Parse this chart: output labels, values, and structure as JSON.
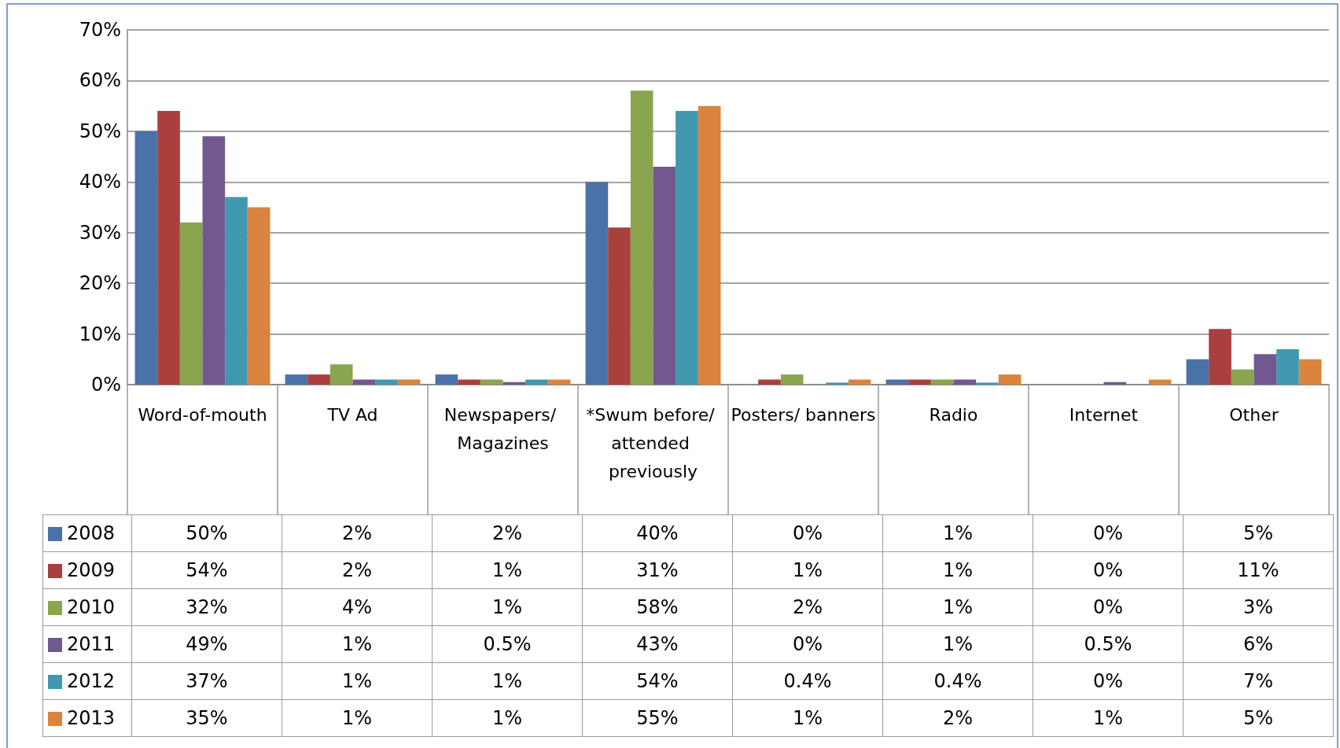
{
  "chart_data": {
    "type": "bar",
    "categories": [
      "Word-of-mouth",
      "TV Ad",
      "Newspapers/ Magazines",
      "*Swum before/ attended previously",
      "Posters/ banners",
      "Radio",
      "Internet",
      "Other"
    ],
    "series": [
      {
        "name": "2008",
        "color": "#4a72a8",
        "values": [
          50,
          2,
          2,
          40,
          0,
          1,
          0,
          5
        ],
        "value_labels": [
          "50%",
          "2%",
          "2%",
          "40%",
          "0%",
          "1%",
          "0%",
          "5%"
        ]
      },
      {
        "name": "2009",
        "color": "#a9403d",
        "values": [
          54,
          2,
          1,
          31,
          1,
          1,
          0,
          11
        ],
        "value_labels": [
          "54%",
          "2%",
          "1%",
          "31%",
          "1%",
          "1%",
          "0%",
          "11%"
        ]
      },
      {
        "name": "2010",
        "color": "#89a54e",
        "values": [
          32,
          4,
          1,
          58,
          2,
          1,
          0,
          3
        ],
        "value_labels": [
          "32%",
          "4%",
          "1%",
          "58%",
          "2%",
          "1%",
          "0%",
          "3%"
        ]
      },
      {
        "name": "2011",
        "color": "#71588f",
        "values": [
          49,
          1,
          0.5,
          43,
          0,
          1,
          0.5,
          6
        ],
        "value_labels": [
          "49%",
          "1%",
          "0.5%",
          "43%",
          "0%",
          "1%",
          "0.5%",
          "6%"
        ]
      },
      {
        "name": "2012",
        "color": "#4198af",
        "values": [
          37,
          1,
          1,
          54,
          0.4,
          0.4,
          0,
          7
        ],
        "value_labels": [
          "37%",
          "1%",
          "1%",
          "54%",
          "0.4%",
          "0.4%",
          "0%",
          "7%"
        ]
      },
      {
        "name": "2013",
        "color": "#db843d",
        "values": [
          35,
          1,
          1,
          55,
          1,
          2,
          1,
          5
        ],
        "value_labels": [
          "35%",
          "1%",
          "1%",
          "55%",
          "1%",
          "2%",
          "1%",
          "5%"
        ]
      }
    ],
    "ylim": [
      0,
      70
    ],
    "yticks": [
      {
        "value": 0,
        "label": "0%"
      },
      {
        "value": 10,
        "label": "10%"
      },
      {
        "value": 20,
        "label": "20%"
      },
      {
        "value": 30,
        "label": "30%"
      },
      {
        "value": 40,
        "label": "40%"
      },
      {
        "value": 50,
        "label": "50%"
      },
      {
        "value": 60,
        "label": "60%"
      },
      {
        "value": 70,
        "label": "70%"
      }
    ],
    "grid": "y",
    "legend": "bottom left"
  }
}
